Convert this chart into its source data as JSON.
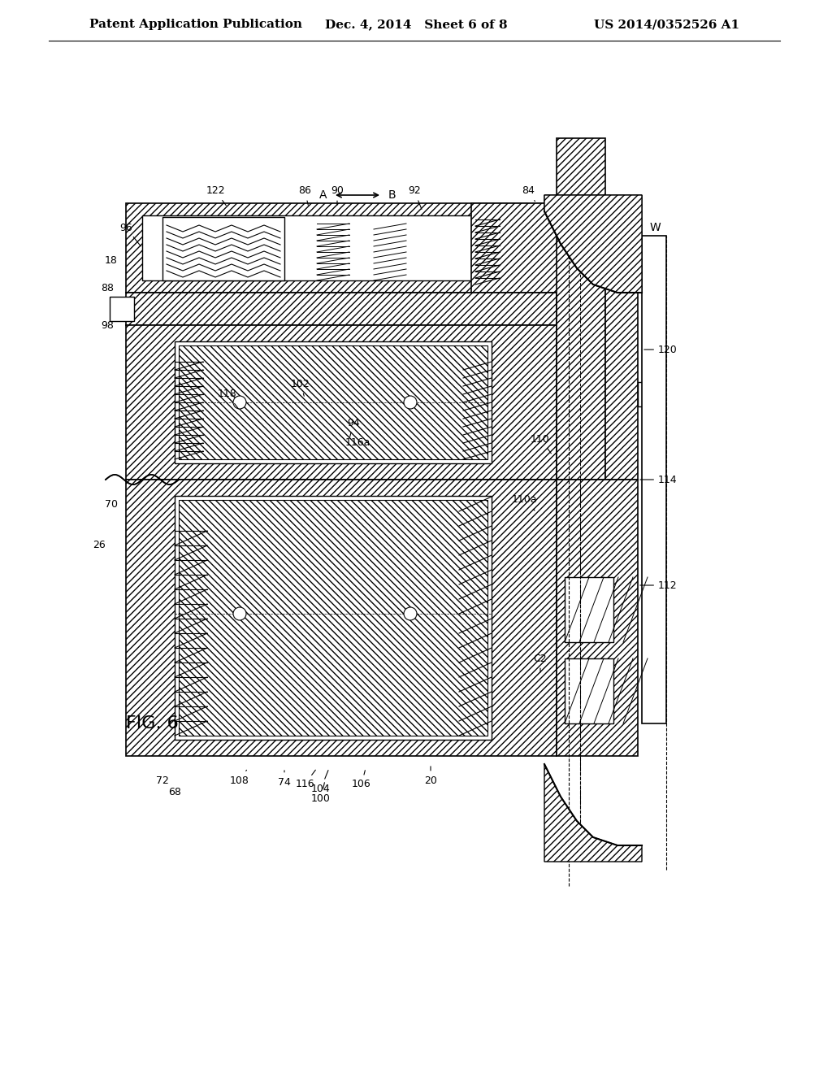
{
  "title": "",
  "background_color": "#ffffff",
  "header_left": "Patent Application Publication",
  "header_center": "Dec. 4, 2014   Sheet 6 of 8",
  "header_right": "US 2014/0352526 A1",
  "fig_label": "FIG. 6",
  "header_fontsize": 11,
  "fig_label_fontsize": 16
}
